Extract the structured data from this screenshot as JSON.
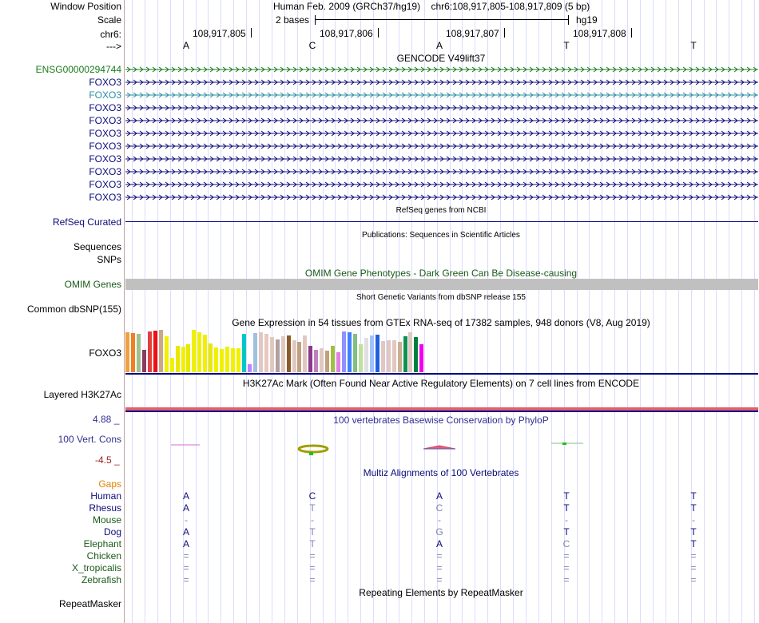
{
  "header": {
    "window_position_label": "Window Position",
    "scale_label": "Scale",
    "chrom_label": "chr6:",
    "strand_label": "--->",
    "assembly": "Human Feb. 2009 (GRCh37/hg19)",
    "position": "chr6:108,917,805-108,917,809 (5 bp)",
    "scale_text": "2 bases",
    "db": "hg19",
    "coords": [
      "108,917,805",
      "108,917,806",
      "108,917,807",
      "108,917,808"
    ],
    "bases": [
      "A",
      "C",
      "A",
      "T",
      "T"
    ]
  },
  "gencode": {
    "title": "GENCODE V49lift37",
    "tracks": [
      {
        "name": "ENSG00000294744",
        "color": "#1a7a1a"
      },
      {
        "name": "FOXO3",
        "color": "#0c0c78"
      },
      {
        "name": "FOXO3",
        "color": "#2a8fa0"
      },
      {
        "name": "FOXO3",
        "color": "#0c0c78"
      },
      {
        "name": "FOXO3",
        "color": "#0c0c78"
      },
      {
        "name": "FOXO3",
        "color": "#0c0c78"
      },
      {
        "name": "FOXO3",
        "color": "#0c0c78"
      },
      {
        "name": "FOXO3",
        "color": "#0c0c78"
      },
      {
        "name": "FOXO3",
        "color": "#0c0c78"
      },
      {
        "name": "FOXO3",
        "color": "#0c0c78"
      },
      {
        "name": "FOXO3",
        "color": "#0c0c78"
      }
    ]
  },
  "refseq": {
    "title": "RefSeq genes from NCBI",
    "label": "RefSeq Curated"
  },
  "publications": {
    "title": "Publications: Sequences in Scientific Articles",
    "label1": "Sequences",
    "label2": "SNPs"
  },
  "omim": {
    "title": "OMIM Gene Phenotypes - Dark Green Can Be Disease-causing",
    "label": "OMIM Genes"
  },
  "dbsnp": {
    "title": "Short Genetic Variants from dbSNP release 155",
    "label": "Common dbSNP(155)"
  },
  "gtex": {
    "title": "Gene Expression in 54 tissues from GTEx RNA-seq of 17382 samples, 948 donors (V8, Aug 2019)",
    "label": "FOXO3",
    "colors": [
      "#f0a040",
      "#f08020",
      "#a0c090",
      "#8b3a62",
      "#e04040",
      "#f01010",
      "#c8a888",
      "#f0f000",
      "#f0f000",
      "#e8e800",
      "#f0f000",
      "#e8e800",
      "#f0f000",
      "#f0f000",
      "#f0f000",
      "#e8e800",
      "#f0f000",
      "#f0f000",
      "#f0f000",
      "#f0f000",
      "#f0f000",
      "#00c8c8",
      "#c080ff",
      "#a0c0e0",
      "#e0c8c0",
      "#e8c8c0",
      "#e0c8c0",
      "#b0a0a0",
      "#e0c8c0",
      "#8b5a2b",
      "#e0c8c0",
      "#c0a080",
      "#e0c8c0",
      "#8b3a8b",
      "#c080c0",
      "#e0c8c0",
      "#c0a080",
      "#a0c040",
      "#e080e0",
      "#9090ff",
      "#4080ff",
      "#80c080",
      "#c0e0a0",
      "#e0e0e0",
      "#a0c0ff",
      "#2060e0",
      "#e0c8c0",
      "#e0c8c0",
      "#e0c8c0",
      "#c8b090",
      "#109050",
      "#e0c8c0",
      "#008040",
      "#f000f0"
    ],
    "heights": [
      50,
      49,
      48,
      28,
      51,
      52,
      53,
      45,
      18,
      33,
      32,
      35,
      53,
      50,
      47,
      36,
      31,
      29,
      32,
      30,
      30,
      48,
      10,
      49,
      50,
      48,
      44,
      41,
      45,
      46,
      40,
      38,
      46,
      33,
      28,
      30,
      27,
      33,
      25,
      51,
      50,
      48,
      35,
      43,
      46,
      47,
      39,
      40,
      40,
      38,
      45,
      50,
      44,
      35
    ]
  },
  "h3k27ac": {
    "title": "H3K27Ac Mark (Often Found Near Active Regulatory Elements) on 7 cell lines from ENCODE",
    "label": "Layered H3K27Ac"
  },
  "conservation": {
    "title": "100 vertebrates Basewise Conservation by PhyloP",
    "label": "100 Vert. Cons",
    "max": "4.88 _",
    "min": "-4.5 _"
  },
  "multiz": {
    "title": "Multiz Alignments of 100 Vertebrates",
    "gaps_label": "Gaps",
    "species": [
      {
        "name": "Human",
        "color": "#0c0c78",
        "bases": [
          "A",
          "C",
          "A",
          "T",
          "T"
        ],
        "base_colors": [
          "#0c0c78",
          "#0c0c78",
          "#0c0c78",
          "#0c0c78",
          "#0c0c78"
        ]
      },
      {
        "name": "Rhesus",
        "color": "#0c0c78",
        "bases": [
          "A",
          "T",
          "C",
          "T",
          "T"
        ],
        "base_colors": [
          "#0c0c78",
          "#8080b0",
          "#8080b0",
          "#0c0c78",
          "#0c0c78"
        ]
      },
      {
        "name": "Mouse",
        "color": "#1a5a1a",
        "bases": [
          "-",
          "-",
          "-",
          "-",
          "-"
        ],
        "base_colors": [
          "#8080b0",
          "#8080b0",
          "#8080b0",
          "#8080b0",
          "#8080b0"
        ]
      },
      {
        "name": "Dog",
        "color": "#0c0c78",
        "bases": [
          "A",
          "T",
          "G",
          "T",
          "T"
        ],
        "base_colors": [
          "#0c0c78",
          "#8080b0",
          "#8080b0",
          "#0c0c78",
          "#0c0c78"
        ]
      },
      {
        "name": "Elephant",
        "color": "#1a5a1a",
        "bases": [
          "A",
          "T",
          "A",
          "C",
          "T"
        ],
        "base_colors": [
          "#0c0c78",
          "#8080b0",
          "#0c0c78",
          "#8080b0",
          "#0c0c78"
        ]
      },
      {
        "name": "Chicken",
        "color": "#1a5a1a",
        "bases": [
          "=",
          "=",
          "=",
          "=",
          "="
        ],
        "base_colors": [
          "#8080b0",
          "#8080b0",
          "#8080b0",
          "#8080b0",
          "#8080b0"
        ]
      },
      {
        "name": "X_tropicalis",
        "color": "#1a5a1a",
        "bases": [
          "=",
          "=",
          "=",
          "=",
          "="
        ],
        "base_colors": [
          "#8080b0",
          "#8080b0",
          "#8080b0",
          "#8080b0",
          "#8080b0"
        ]
      },
      {
        "name": "Zebrafish",
        "color": "#1a5a1a",
        "bases": [
          "=",
          "=",
          "=",
          "=",
          "="
        ],
        "base_colors": [
          "#8080b0",
          "#8080b0",
          "#8080b0",
          "#8080b0",
          "#8080b0"
        ]
      }
    ]
  },
  "repeatmasker": {
    "title": "Repeating Elements by RepeatMasker",
    "label": "RepeatMasker"
  },
  "colors": {
    "omim_gray": "#c0c0c0",
    "h3k27ac_top": "#e06070",
    "h3k27ac_bottom": "#000080",
    "separator": "#c0a0a0",
    "gridline": "#dcdcff"
  }
}
